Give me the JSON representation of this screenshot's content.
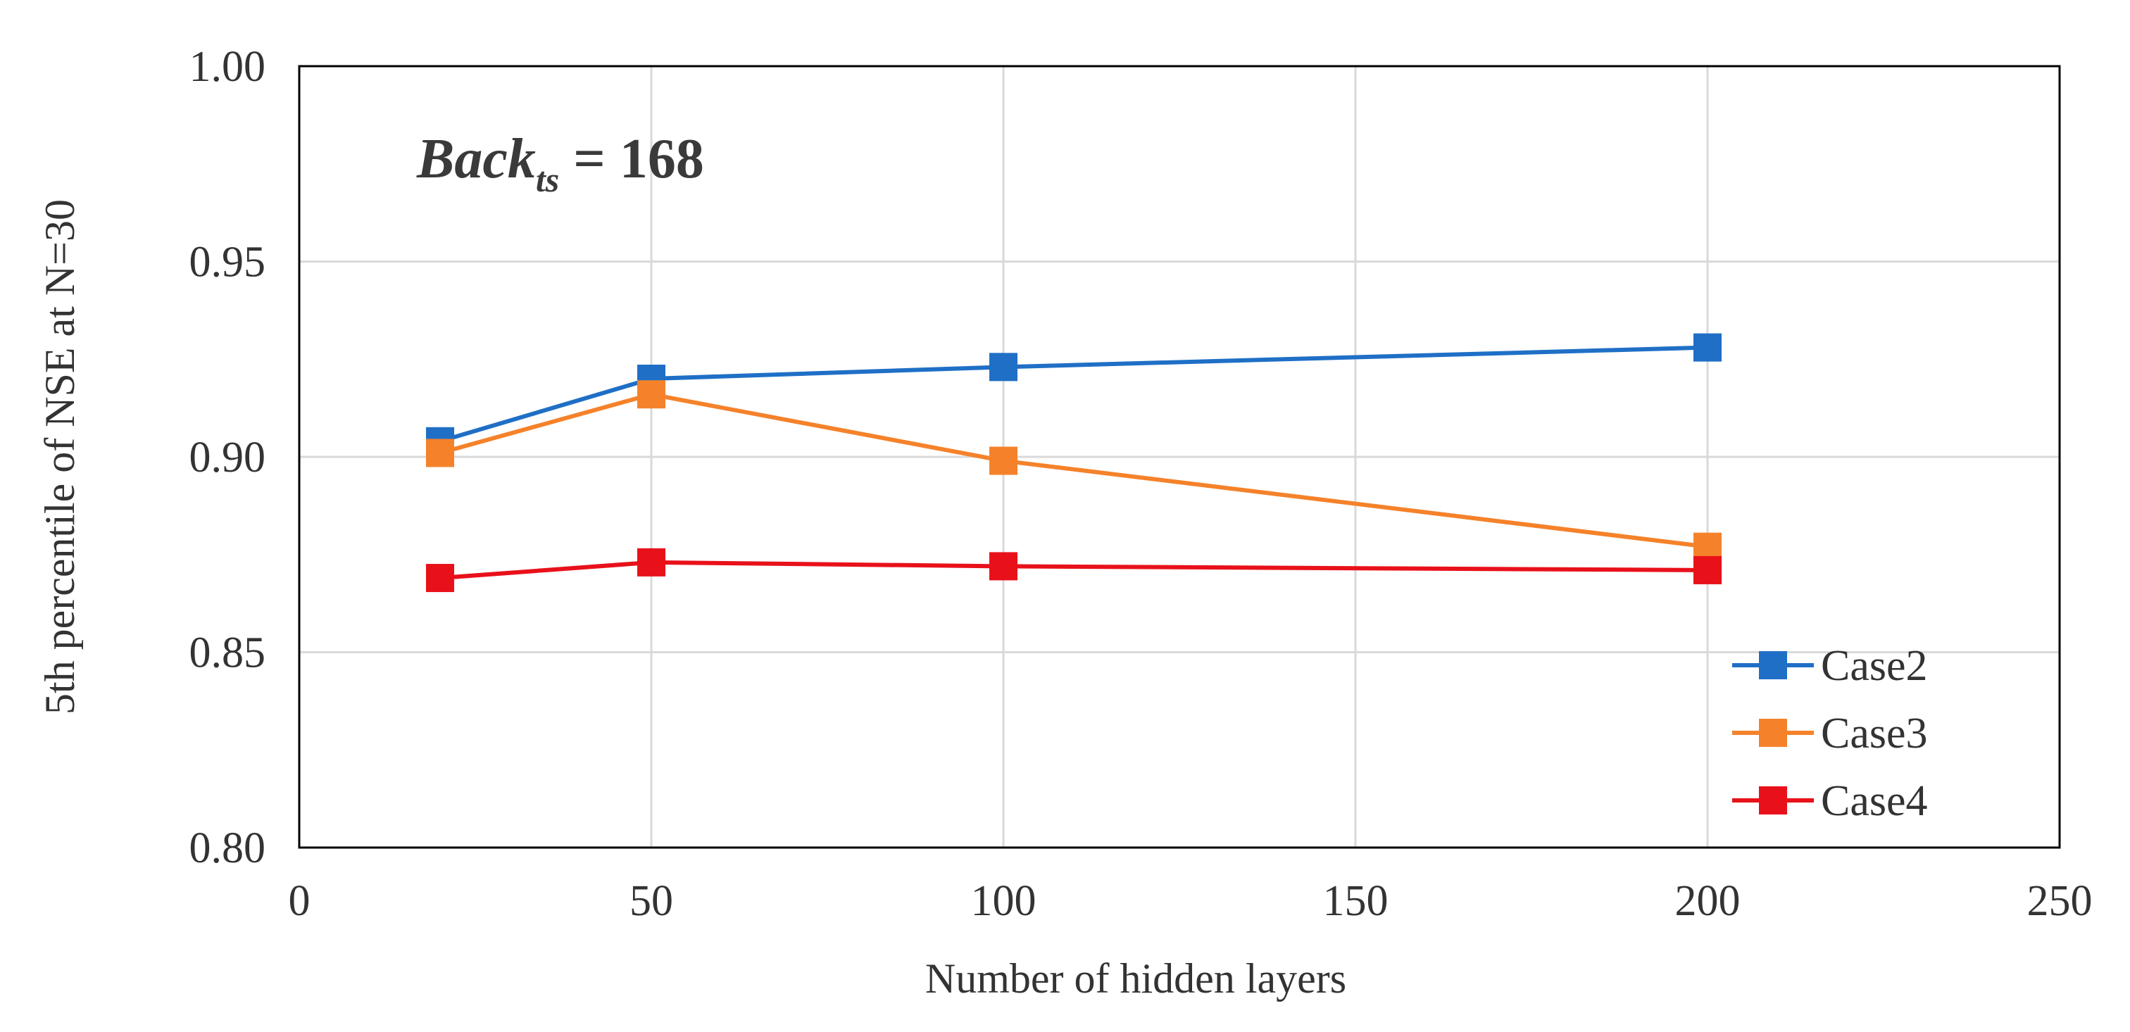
{
  "chart_data": {
    "type": "line",
    "xlabel": "Number of hidden layers",
    "ylabel": "5th percentile of NSE at N=30",
    "xlim": [
      0,
      250
    ],
    "ylim": [
      0.8,
      1.0
    ],
    "x_ticks": [
      "0",
      "50",
      "100",
      "150",
      "200",
      "250"
    ],
    "y_ticks": [
      "0.80",
      "0.85",
      "0.90",
      "0.95",
      "1.00"
    ],
    "grid": true,
    "legend_position": "bottom-right",
    "annotation": {
      "base": "Back",
      "subscript": "ts",
      "rest": " = 168"
    },
    "series": [
      {
        "name": "Case2",
        "color": "#1f6fc6",
        "x": [
          20,
          50,
          100,
          200
        ],
        "y": [
          0.904,
          0.92,
          0.923,
          0.928
        ]
      },
      {
        "name": "Case3",
        "color": "#f5822a",
        "x": [
          20,
          50,
          100,
          200
        ],
        "y": [
          0.901,
          0.916,
          0.899,
          0.877
        ]
      },
      {
        "name": "Case4",
        "color": "#e8111a",
        "x": [
          20,
          50,
          100,
          200
        ],
        "y": [
          0.869,
          0.873,
          0.872,
          0.871
        ]
      }
    ]
  }
}
